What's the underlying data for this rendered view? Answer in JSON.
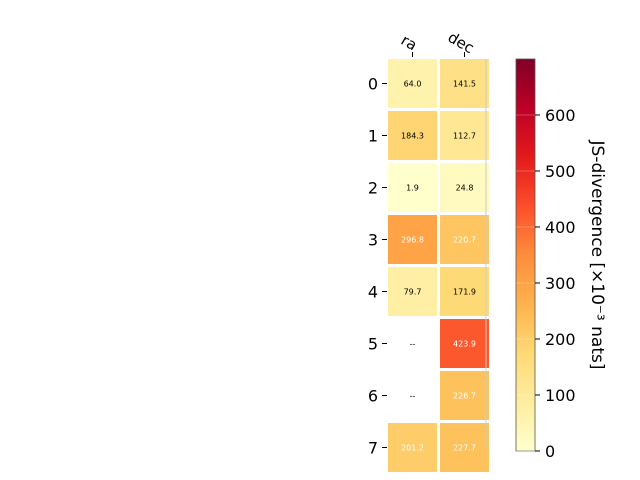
{
  "chart_data": {
    "type": "heatmap",
    "columns": [
      "ra",
      "dec"
    ],
    "rows": [
      "0",
      "1",
      "2",
      "3",
      "4",
      "5",
      "6",
      "7"
    ],
    "values": [
      [
        64.0,
        141.5
      ],
      [
        184.3,
        112.7
      ],
      [
        1.9,
        24.8
      ],
      [
        296.8,
        220.7
      ],
      [
        79.7,
        171.9
      ],
      [
        null,
        423.9
      ],
      [
        null,
        226.7
      ],
      [
        201.2,
        227.7
      ]
    ],
    "cell_labels": [
      [
        "64.0",
        "141.5"
      ],
      [
        "184.3",
        "112.7"
      ],
      [
        "1.9",
        "24.8"
      ],
      [
        "296.8",
        "220.7"
      ],
      [
        "79.7",
        "171.9"
      ],
      [
        "--",
        "423.9"
      ],
      [
        "--",
        "226.7"
      ],
      [
        "201.2",
        "227.7"
      ]
    ],
    "colorbar": {
      "label": "JS-divergence [×10⁻³ nats]",
      "range": [
        0,
        700
      ],
      "ticks": [
        "0",
        "100",
        "200",
        "300",
        "400",
        "500",
        "600"
      ],
      "colormap": "YlOrRd"
    },
    "xlabel": "",
    "ylabel": "",
    "title": "",
    "grid": false
  }
}
